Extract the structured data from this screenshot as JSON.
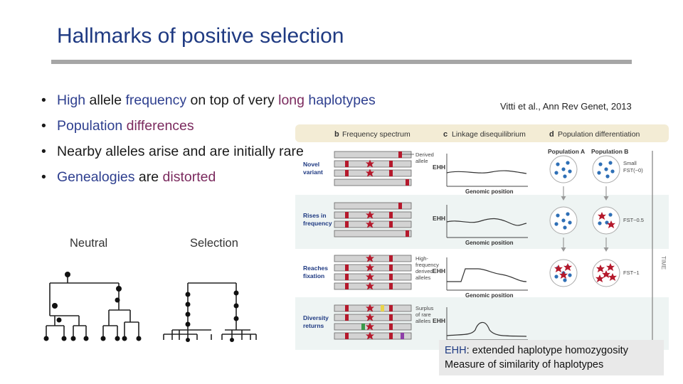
{
  "slide": {
    "title": "Hallmarks of positive selection",
    "bullets": [
      {
        "parts": [
          {
            "text": "High",
            "color": "blue"
          },
          {
            "text": " allele ",
            "color": "black"
          },
          {
            "text": "frequency",
            "color": "blue"
          },
          {
            "text": " on top of very ",
            "color": "black"
          },
          {
            "text": "long",
            "color": "purple"
          },
          {
            "text": " haplotypes",
            "color": "blue"
          }
        ]
      },
      {
        "parts": [
          {
            "text": "Population",
            "color": "blue"
          },
          {
            "text": " ",
            "color": "black"
          },
          {
            "text": "differences",
            "color": "purple"
          }
        ]
      },
      {
        "parts": [
          {
            "text": "Nearby alleles arise and are initially rare",
            "color": "black"
          }
        ]
      },
      {
        "parts": [
          {
            "text": "Genealogies",
            "color": "blue"
          },
          {
            "text": " are ",
            "color": "black"
          },
          {
            "text": "distorted",
            "color": "purple"
          }
        ]
      }
    ],
    "citation": "Vitti et al., Ann Rev Genet, 2013",
    "tree_labels": {
      "neutral": "Neutral",
      "selection": "Selection"
    },
    "ehh_note": {
      "key": "EHH",
      "line1_rest": ": extended haplotype homozygosity",
      "line2": "Measure of similarity of haplotypes"
    }
  },
  "figure": {
    "panel_b": {
      "letter": "b",
      "title": "Frequency spectrum"
    },
    "panel_c": {
      "letter": "c",
      "title": "Linkage disequilibrium"
    },
    "panel_d": {
      "letter": "d",
      "title": "Population differentiation"
    },
    "rows": [
      {
        "label_lines": [
          "Novel",
          "variant"
        ],
        "note_lines": [
          "Derived",
          "allele"
        ],
        "fst_lines": [
          "Small",
          "FST(~0)"
        ]
      },
      {
        "label_lines": [
          "Rises in",
          "frequency"
        ],
        "note_lines": [],
        "fst_lines": [
          "FST~0.5"
        ]
      },
      {
        "label_lines": [
          "Reaches",
          "fixation"
        ],
        "note_lines": [
          "High-",
          "frequency",
          "derived",
          "alleles"
        ],
        "fst_lines": [
          "FST~1"
        ]
      },
      {
        "label_lines": [
          "Diversity",
          "returns"
        ],
        "note_lines": [
          "Surplus",
          "of rare",
          "alleles"
        ],
        "fst_lines": []
      }
    ],
    "ehh_label": "EHH",
    "genomic_position_label": "Genomic position",
    "population_a": "Population A",
    "population_b": "Population B",
    "time_label": "TIME",
    "colors": {
      "derived": "#b5192c",
      "rare_green": "#3a9a4a",
      "rare_yellow": "#e8d44a",
      "rare_purple": "#8e3fa8",
      "pop_dot": "#2e6fb6"
    }
  }
}
